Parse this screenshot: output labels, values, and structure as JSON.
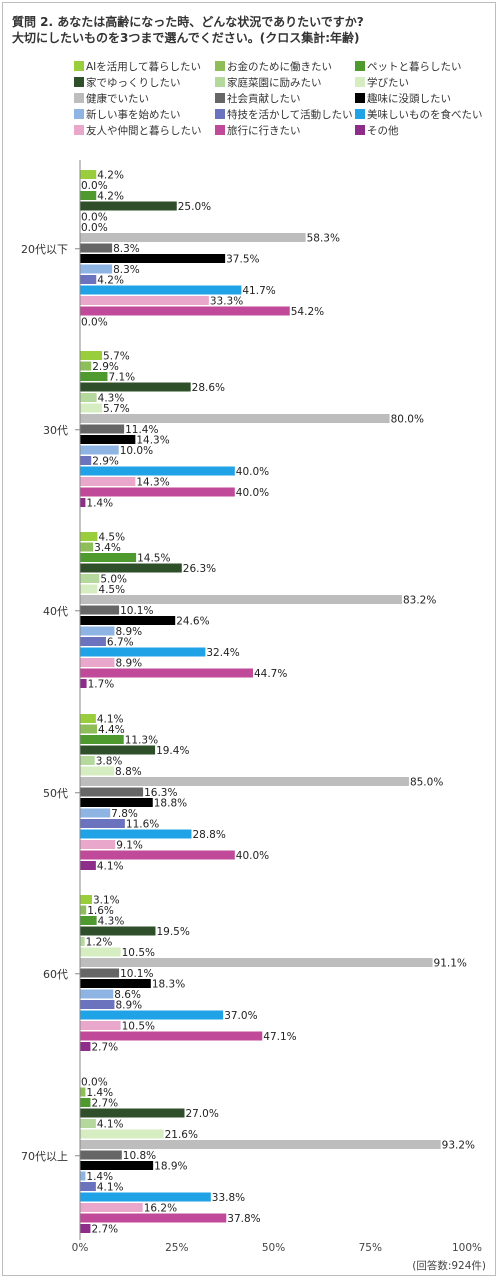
{
  "title_lines": [
    "質問 2. あなたは高齢になった時、どんな状況でありたいですか?",
    "大切にしたいものを3つまで選んでください。(クロス集計:年齢)"
  ],
  "legend": [
    {
      "label": "AIを活用して暮らしたい",
      "color": "#9ACD3C"
    },
    {
      "label": "お金のために働きたい",
      "color": "#8DBE5A"
    },
    {
      "label": "ペットと暮らしたい",
      "color": "#4E9A2E"
    },
    {
      "label": "家でゆっくりしたい",
      "color": "#2E4F2A"
    },
    {
      "label": "家庭菜園に励みたい",
      "color": "#B5D99C"
    },
    {
      "label": "学びたい",
      "color": "#D5EDC0"
    },
    {
      "label": "健康でいたい",
      "color": "#BDBDBD"
    },
    {
      "label": "社会貢献したい",
      "color": "#666666"
    },
    {
      "label": "趣味に没頭したい",
      "color": "#000000"
    },
    {
      "label": "新しい事を始めたい",
      "color": "#8EB4E3"
    },
    {
      "label": "特技を活かして活動したい",
      "color": "#6B72BE"
    },
    {
      "label": "美味しいものを食べたい",
      "color": "#1FA3E6"
    },
    {
      "label": "友人や仲間と暮らしたい",
      "color": "#E8A7CB"
    },
    {
      "label": "旅行に行きたい",
      "color": "#C0499A"
    },
    {
      "label": "その他",
      "color": "#8E2E8A"
    }
  ],
  "chart_data": {
    "type": "bar",
    "orientation": "horizontal",
    "categories": [
      "20代以下",
      "30代",
      "40代",
      "50代",
      "60代",
      "70代以上"
    ],
    "xlim": [
      0,
      100
    ],
    "x_ticks": [
      "0%",
      "25%",
      "50%",
      "75%",
      "100%"
    ],
    "series": [
      {
        "name": "AIを活用して暮らしたい",
        "values": [
          4.2,
          5.7,
          4.5,
          4.1,
          3.1,
          0.0
        ]
      },
      {
        "name": "お金のために働きたい",
        "values": [
          0.0,
          2.9,
          3.4,
          4.4,
          1.6,
          1.4
        ]
      },
      {
        "name": "ペットと暮らしたい",
        "values": [
          4.2,
          7.1,
          14.5,
          11.3,
          4.3,
          2.7
        ]
      },
      {
        "name": "家でゆっくりしたい",
        "values": [
          25.0,
          28.6,
          26.3,
          19.4,
          19.5,
          27.0
        ]
      },
      {
        "name": "家庭菜園に励みたい",
        "values": [
          0.0,
          4.3,
          5.0,
          3.8,
          1.2,
          4.1
        ]
      },
      {
        "name": "学びたい",
        "values": [
          0.0,
          5.7,
          4.5,
          8.8,
          10.5,
          21.6
        ]
      },
      {
        "name": "健康でいたい",
        "values": [
          58.3,
          80.0,
          83.2,
          85.0,
          91.1,
          93.2
        ]
      },
      {
        "name": "社会貢献したい",
        "values": [
          8.3,
          11.4,
          10.1,
          16.3,
          10.1,
          10.8
        ]
      },
      {
        "name": "趣味に没頭したい",
        "values": [
          37.5,
          14.3,
          24.6,
          18.8,
          18.3,
          18.9
        ]
      },
      {
        "name": "新しい事を始めたい",
        "values": [
          8.3,
          10.0,
          8.9,
          7.8,
          8.6,
          1.4
        ]
      },
      {
        "name": "特技を活かして活動したい",
        "values": [
          4.2,
          2.9,
          6.7,
          11.6,
          8.9,
          4.1
        ]
      },
      {
        "name": "美味しいものを食べたい",
        "values": [
          41.7,
          40.0,
          32.4,
          28.8,
          37.0,
          33.8
        ]
      },
      {
        "name": "友人や仲間と暮らしたい",
        "values": [
          33.3,
          14.3,
          8.9,
          9.1,
          10.5,
          16.2
        ]
      },
      {
        "name": "旅行に行きたい",
        "values": [
          54.2,
          40.0,
          44.7,
          40.0,
          47.1,
          37.8
        ]
      },
      {
        "name": "その他",
        "values": [
          0.0,
          1.4,
          1.7,
          4.1,
          2.7,
          2.7
        ]
      }
    ],
    "grid": false
  },
  "note": "(回答数:924件)"
}
